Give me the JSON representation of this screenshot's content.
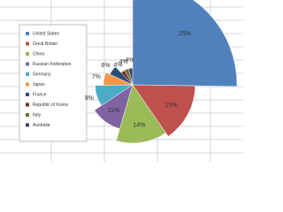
{
  "chart_data": {
    "type": "pie",
    "categories": [
      "United States",
      "Great Britain",
      "China",
      "Russian Federation",
      "Germany",
      "Japan",
      "France",
      "Republic of Korea",
      "Italy",
      "Australia"
    ],
    "values": [
      25,
      15,
      14,
      11,
      9,
      7,
      6,
      4,
      4,
      4
    ],
    "value_labels": [
      "25%",
      "15%",
      "14%",
      "11%",
      "9%",
      "7%",
      "6%",
      "4%",
      "4%",
      "4%"
    ],
    "colors": [
      "#4f81bd",
      "#c0504d",
      "#9bbb59",
      "#8064a2",
      "#4bacc6",
      "#f79646",
      "#2c4d75",
      "#772c2a",
      "#5f7530",
      "#4d3b62"
    ],
    "legend": "left"
  }
}
